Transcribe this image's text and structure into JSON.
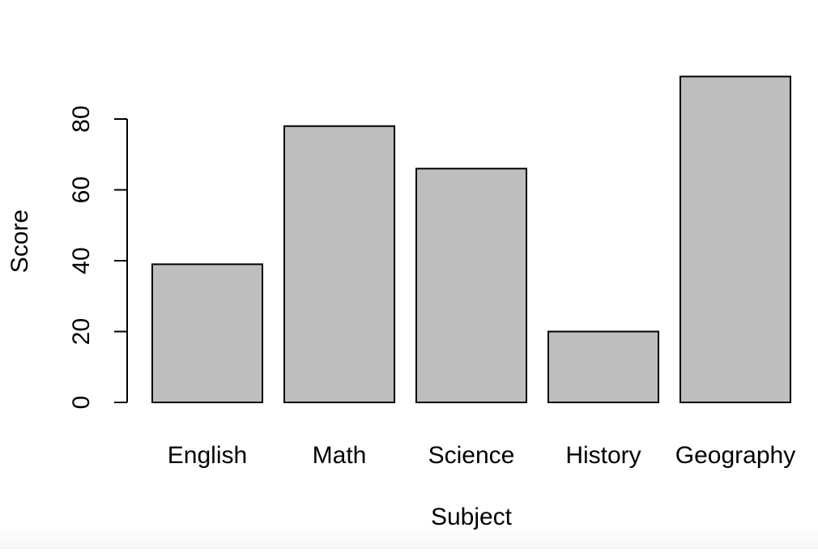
{
  "chart_data": {
    "type": "bar",
    "categories": [
      "English",
      "Math",
      "Science",
      "History",
      "Geography"
    ],
    "values": [
      39,
      78,
      66,
      20,
      92
    ],
    "xlabel": "Subject",
    "ylabel": "Score",
    "ylim": [
      0,
      92
    ],
    "yticks": [
      0,
      20,
      40,
      60,
      80
    ],
    "grid": false,
    "legend": "none",
    "bar_fill": "#bebebe",
    "bar_stroke": "#000000"
  }
}
